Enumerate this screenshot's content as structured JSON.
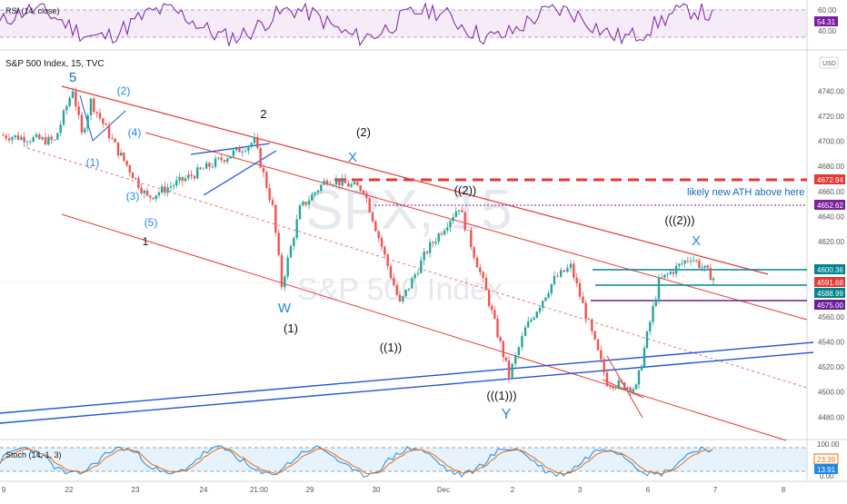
{
  "panels": {
    "rsi": {
      "label": "RSI (14, close)",
      "value": "54.31",
      "ticks": [
        "60.00",
        "40.00"
      ]
    },
    "main": {
      "symbol_title": "S&P 500 Index, 15, TVC",
      "currency": "USD",
      "watermark_big": "SPX, 15",
      "watermark_small": "S&P 500 Index",
      "price_ticks": [
        "4740.00",
        "4720.00",
        "4700.00",
        "4680.00",
        "4660.00",
        "4640.00",
        "4620.00",
        "4580.00",
        "4560.00",
        "4540.00",
        "4520.00",
        "4500.00",
        "4480.00"
      ]
    },
    "stoch": {
      "label": "Stoch (14, 1, 3)",
      "ticks": [
        "100.00",
        "0.00"
      ],
      "values": [
        "23.39",
        "13.91"
      ]
    }
  },
  "price_labels": [
    {
      "text": "4672.94",
      "color": "#e53935"
    },
    {
      "text": "4652.62",
      "color": "#7b1fa2"
    },
    {
      "text": "4600.36",
      "color": "#00838f"
    },
    {
      "text": "4591.68",
      "color": "#e53935"
    },
    {
      "text": "4588.99",
      "color": "#00838f"
    },
    {
      "text": "4575.00",
      "color": "#6a1b9a"
    }
  ],
  "time_axis": [
    "9",
    "22",
    "23",
    "24",
    "21:00",
    "29",
    "30",
    "Dec",
    "2",
    "3",
    "6",
    "7",
    "8"
  ],
  "wave_labels": [
    {
      "text": "5",
      "color": "#1565c0"
    },
    {
      "text": "(2)",
      "color": "#1e88e5"
    },
    {
      "text": "(4)",
      "color": "#1e88e5"
    },
    {
      "text": "(1)",
      "color": "#1e88e5"
    },
    {
      "text": "(3)",
      "color": "#1e88e5"
    },
    {
      "text": "(5)",
      "color": "#1e88e5"
    },
    {
      "text": "1",
      "color": "#111111"
    },
    {
      "text": "2",
      "color": "#111111"
    },
    {
      "text": "(2)",
      "color": "#111111"
    },
    {
      "text": "X",
      "color": "#1e88e5"
    },
    {
      "text": "W",
      "color": "#1e88e5"
    },
    {
      "text": "(1)",
      "color": "#111111"
    },
    {
      "text": "((1))",
      "color": "#111111"
    },
    {
      "text": "((2))",
      "color": "#111111"
    },
    {
      "text": "(((1)))",
      "color": "#111111"
    },
    {
      "text": "Y",
      "color": "#1e88e5"
    },
    {
      "text": "(((2)))",
      "color": "#111111"
    },
    {
      "text": "X",
      "color": "#1e88e5"
    }
  ],
  "annotation": "likely new ATH above here",
  "chart_data": {
    "type": "candlestick",
    "title": "S&P 500 Index, 15, TVC",
    "y_unit": "USD",
    "ylim": [
      4465,
      4762
    ],
    "x": [
      "Nov 9",
      "Nov 22",
      "Nov 23",
      "Nov 24",
      "Nov 26",
      "Nov 29",
      "Nov 30",
      "Dec 1",
      "Dec 2",
      "Dec 3",
      "Dec 6",
      "Dec 7",
      "Dec 8"
    ],
    "close_path": [
      [
        "Nov 9",
        4705
      ],
      [
        "Nov 19",
        4700
      ],
      [
        "Nov 22",
        4742
      ],
      [
        "Nov 22",
        4705
      ],
      [
        "Nov 22",
        4732
      ],
      [
        "Nov 23",
        4692
      ],
      [
        "Nov 23",
        4655
      ],
      [
        "Nov 24",
        4670
      ],
      [
        "Nov 26",
        4700
      ],
      [
        "Nov 26",
        4647
      ],
      [
        "Nov 29",
        4585
      ],
      [
        "Nov 29",
        4646
      ],
      [
        "Nov 29",
        4670
      ],
      [
        "Nov 30",
        4662
      ],
      [
        "Nov 30",
        4570
      ],
      [
        "Nov 30",
        4613
      ],
      [
        "Dec 1",
        4648
      ],
      [
        "Dec 1",
        4580
      ],
      [
        "Dec 1",
        4513
      ],
      [
        "Dec 2",
        4550
      ],
      [
        "Dec 2",
        4590
      ],
      [
        "Dec 3",
        4600
      ],
      [
        "Dec 3",
        4508
      ],
      [
        "Dec 3",
        4503
      ],
      [
        "Dec 6",
        4545
      ],
      [
        "Dec 6",
        4588
      ],
      [
        "Dec 7",
        4608
      ],
      [
        "Dec 7",
        4591
      ]
    ],
    "horizontal_levels": [
      4672.94,
      4652.62,
      4600.36,
      4591.68,
      4588.99,
      4575.0
    ],
    "rsi": {
      "name": "RSI (14, close)",
      "last": 54.31,
      "bands": [
        40,
        60
      ]
    },
    "stochastic": {
      "name": "Stoch (14, 1, 3)",
      "k": 23.39,
      "d": 13.91
    }
  }
}
